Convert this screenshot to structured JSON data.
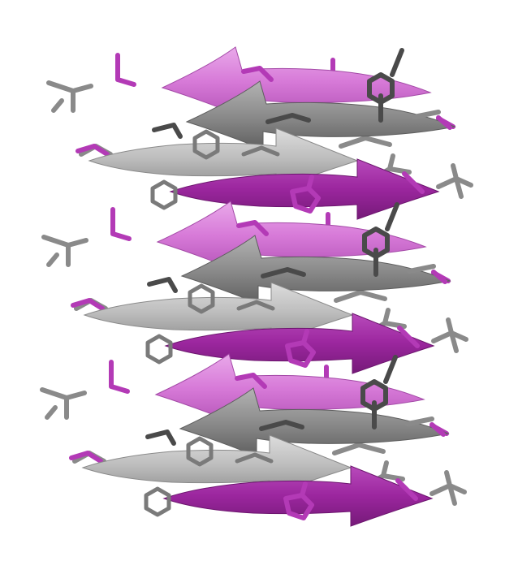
{
  "colors": {
    "background": "#ffffff",
    "magenta_light": "#d77ad8",
    "magenta_mid": "#c263c6",
    "magenta_dark": "#9b269e",
    "magenta_stick": "#b33ab6",
    "gray_light": "#bdbdbd",
    "gray_mid": "#9a9a9a",
    "gray_dark": "#6b6b6b",
    "gray_stick": "#8a8a8a",
    "dark_stick": "#4a4a4a"
  },
  "strands": [
    {
      "row": 1,
      "color": "magenta",
      "shade": "light",
      "direction": "left"
    },
    {
      "row": 2,
      "color": "gray",
      "shade": "dark",
      "direction": "left"
    },
    {
      "row": 3,
      "color": "gray",
      "shade": "light",
      "direction": "right"
    },
    {
      "row": 4,
      "color": "magenta",
      "shade": "dark",
      "direction": "right"
    },
    {
      "row": 5,
      "color": "magenta",
      "shade": "light",
      "direction": "left"
    },
    {
      "row": 6,
      "color": "gray",
      "shade": "dark",
      "direction": "left"
    },
    {
      "row": 7,
      "color": "gray",
      "shade": "light",
      "direction": "right"
    },
    {
      "row": 8,
      "color": "magenta",
      "shade": "dark",
      "direction": "right"
    },
    {
      "row": 9,
      "color": "magenta",
      "shade": "light",
      "direction": "left"
    },
    {
      "row": 10,
      "color": "gray",
      "shade": "dark",
      "direction": "left"
    },
    {
      "row": 11,
      "color": "gray",
      "shade": "light",
      "direction": "right"
    },
    {
      "row": 12,
      "color": "magenta",
      "shade": "dark",
      "direction": "right"
    }
  ]
}
